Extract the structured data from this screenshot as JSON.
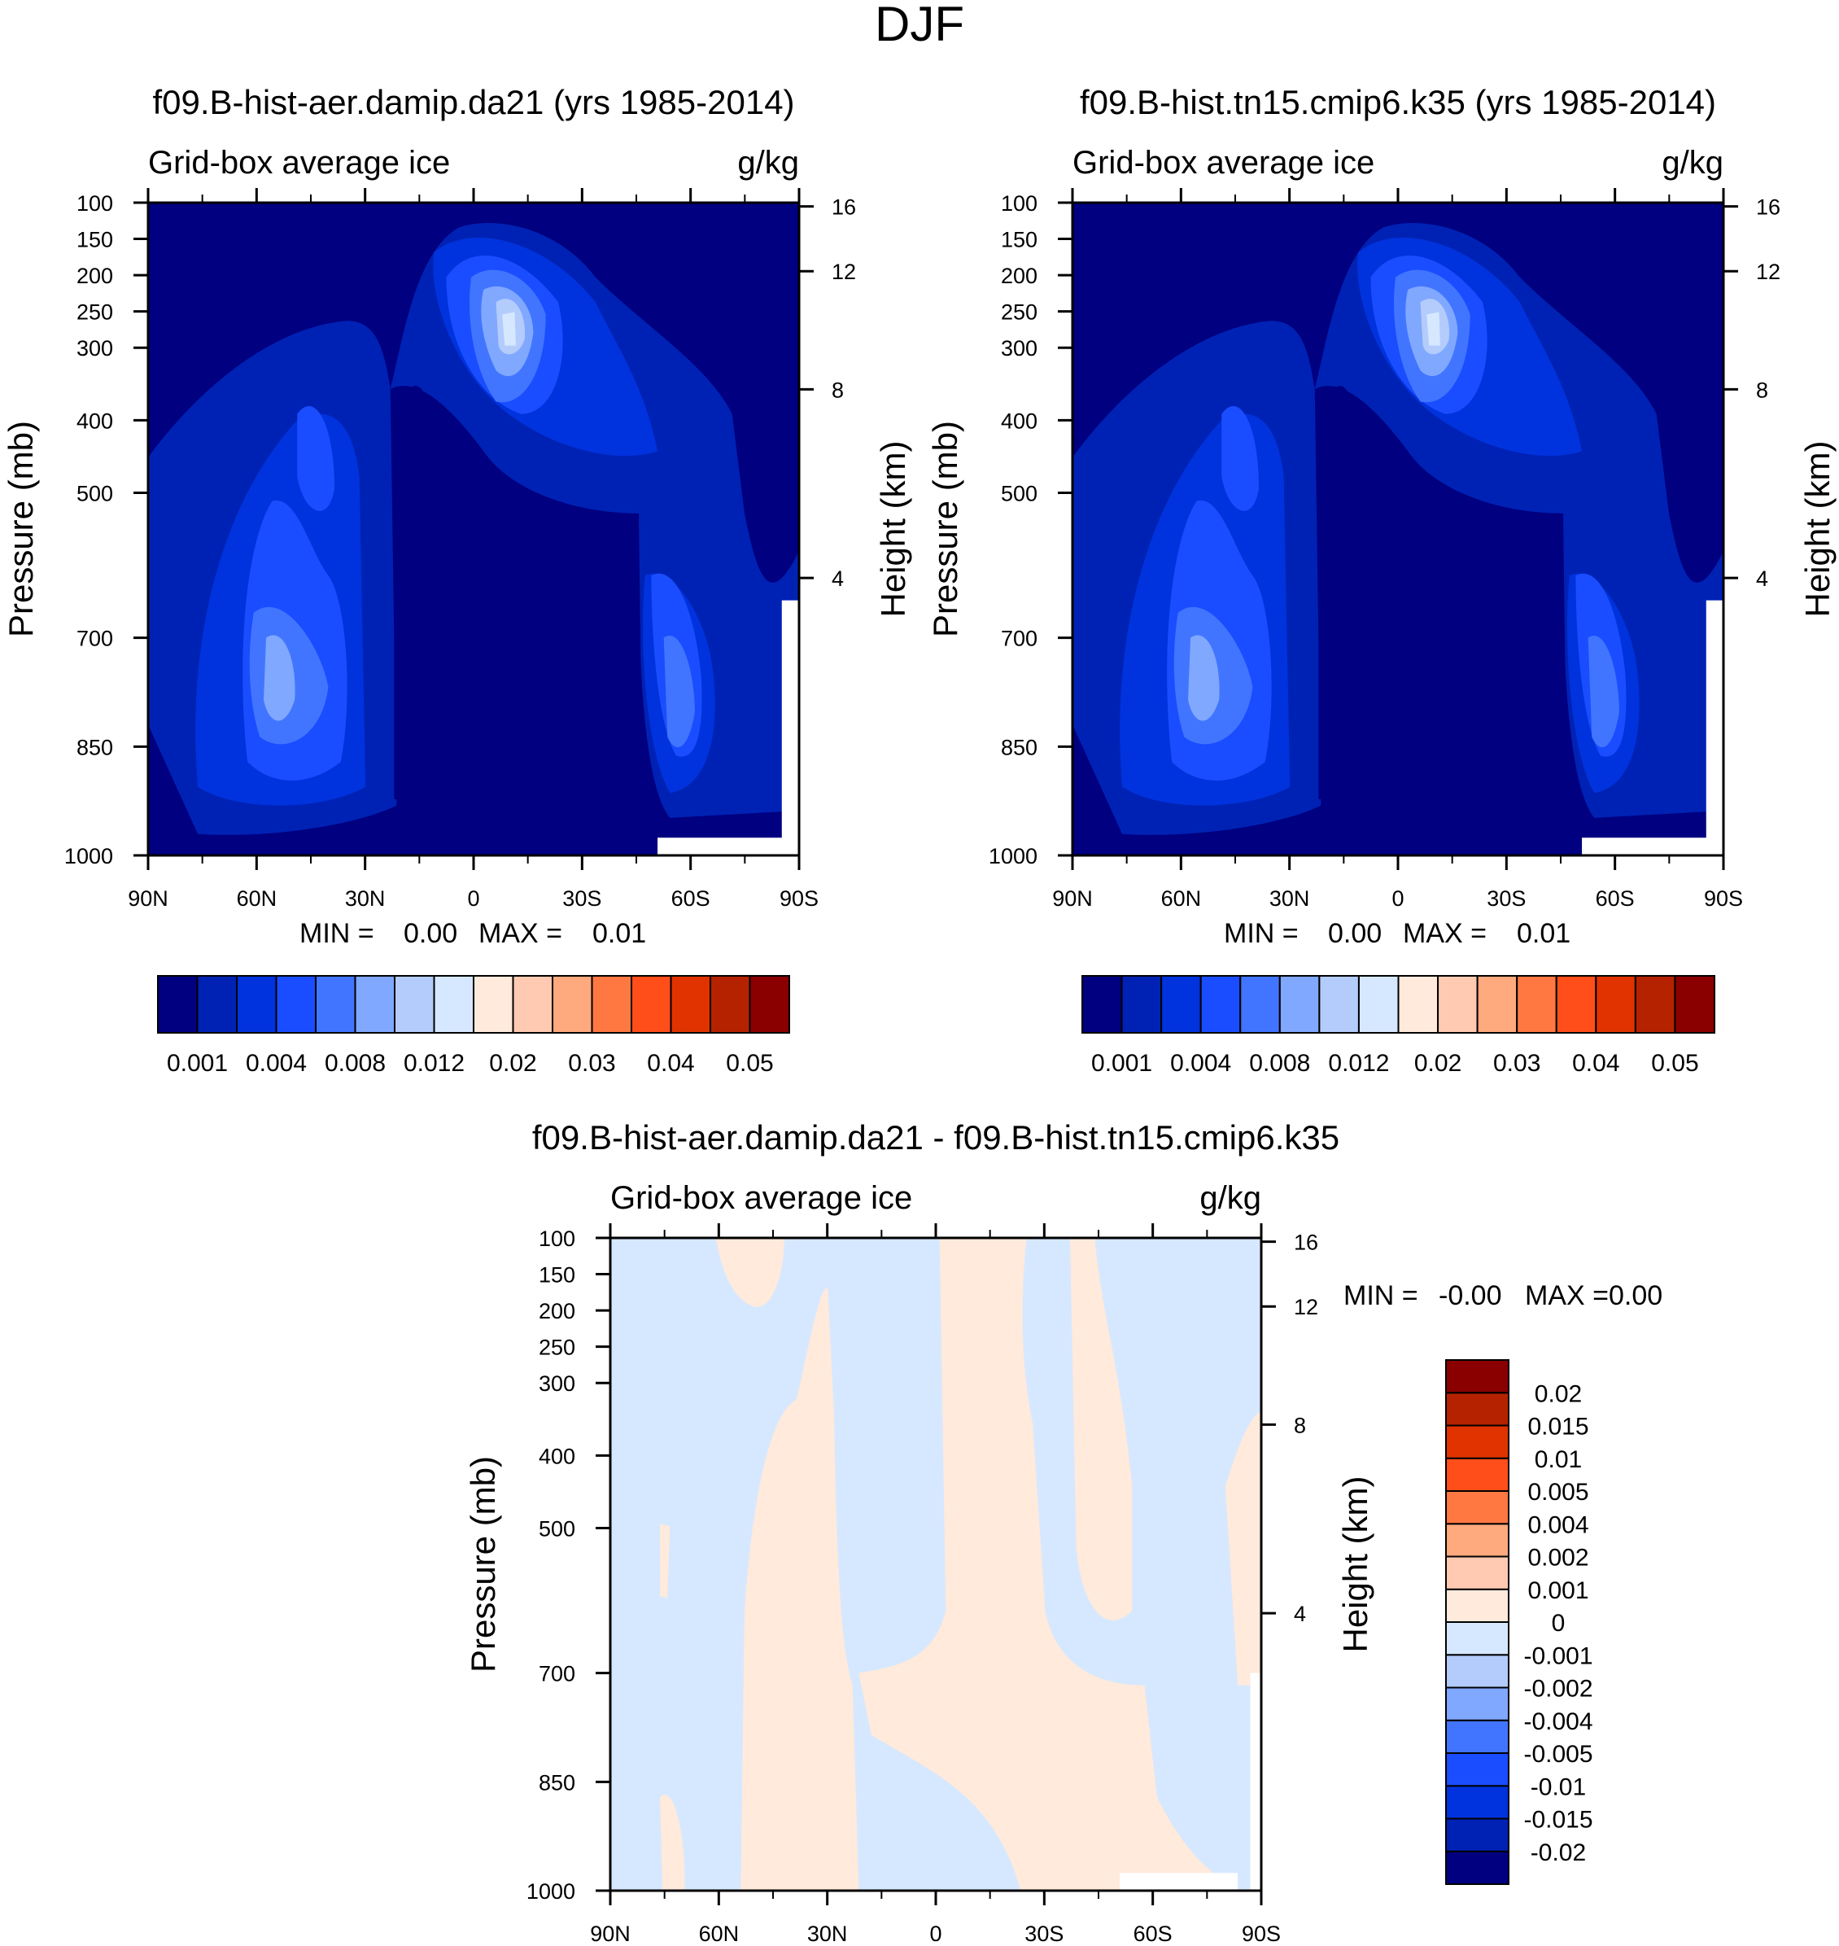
{
  "chart_data": {
    "type": "heatmap",
    "title": "DJF",
    "panels": [
      {
        "title": "f09.B-hist-aer.damip.da21 (yrs 1985-2014)",
        "left_label": "Grid-box average ice",
        "right_label": "g/kg",
        "ylabel": "Pressure (mb)",
        "ylabel_right": "Height (km)",
        "min_label": "MIN =",
        "min_value": "0.00",
        "max_label": "MAX =",
        "max_value": "0.01",
        "x_ticks": [
          "90N",
          "60N",
          "30N",
          "0",
          "30S",
          "60S",
          "90S"
        ],
        "xlim": [
          90,
          -90
        ],
        "y_ticks": [
          100,
          150,
          200,
          250,
          300,
          400,
          500,
          700,
          850,
          1000
        ],
        "ylim": [
          1000,
          100
        ],
        "height_ticks": [
          16,
          12,
          8,
          4
        ],
        "colorbar_labels": [
          "0.001",
          "0.004",
          "0.008",
          "0.012",
          "0.02",
          "0.03",
          "0.04",
          "0.05"
        ]
      },
      {
        "title": "f09.B-hist.tn15.cmip6.k35 (yrs 1985-2014)",
        "left_label": "Grid-box average ice",
        "right_label": "g/kg",
        "ylabel": "Pressure (mb)",
        "ylabel_right": "Height (km)",
        "min_label": "MIN =",
        "min_value": "0.00",
        "max_label": "MAX =",
        "max_value": "0.01",
        "x_ticks": [
          "90N",
          "60N",
          "30N",
          "0",
          "30S",
          "60S",
          "90S"
        ],
        "xlim": [
          90,
          -90
        ],
        "y_ticks": [
          100,
          150,
          200,
          250,
          300,
          400,
          500,
          700,
          850,
          1000
        ],
        "ylim": [
          1000,
          100
        ],
        "height_ticks": [
          16,
          12,
          8,
          4
        ],
        "colorbar_labels": [
          "0.001",
          "0.004",
          "0.008",
          "0.012",
          "0.02",
          "0.03",
          "0.04",
          "0.05"
        ]
      },
      {
        "title": "f09.B-hist-aer.damip.da21 - f09.B-hist.tn15.cmip6.k35",
        "left_label": "Grid-box average ice",
        "right_label": "g/kg",
        "ylabel": "Pressure (mb)",
        "ylabel_right": "Height (km)",
        "min_label": "MIN =",
        "min_value": "-0.00",
        "max_label": "MAX =",
        "max_value": "0.00",
        "x_ticks": [
          "90N",
          "60N",
          "30N",
          "0",
          "30S",
          "60S",
          "90S"
        ],
        "xlim": [
          90,
          -90
        ],
        "y_ticks": [
          100,
          150,
          200,
          250,
          300,
          400,
          500,
          700,
          850,
          1000
        ],
        "ylim": [
          1000,
          100
        ],
        "height_ticks": [
          16,
          12,
          8,
          4
        ],
        "colorbar_labels": [
          "0.02",
          "0.015",
          "0.01",
          "0.005",
          "0.004",
          "0.002",
          "0.001",
          "0",
          "-0.001",
          "-0.002",
          "-0.004",
          "-0.005",
          "-0.01",
          "-0.015",
          "-0.02"
        ]
      }
    ],
    "colors": [
      "#000080",
      "#0022b4",
      "#0033dd",
      "#1a4dff",
      "#4275ff",
      "#80a8ff",
      "#b3ccfb",
      "#d6e8ff",
      "#ffeadb",
      "#ffcab1",
      "#ffa97e",
      "#ff7842",
      "#ff4e1a",
      "#e03300",
      "#b52200",
      "#8a0000"
    ]
  }
}
